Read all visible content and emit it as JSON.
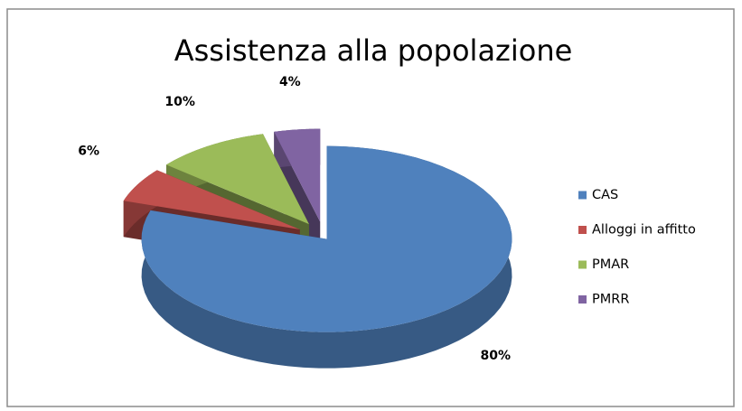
{
  "chart_data": {
    "type": "pie3d",
    "title": "Assistenza alla popolazione",
    "categories": [
      "CAS",
      "Alloggi in affitto",
      "PMAR",
      "PMRR"
    ],
    "values": [
      80,
      6,
      10,
      4
    ],
    "value_labels": [
      "80%",
      "6%",
      "10%",
      "4%"
    ],
    "colors": [
      "#4f81bd",
      "#c0504d",
      "#9bbb59",
      "#8064a2"
    ],
    "legend": "right"
  }
}
